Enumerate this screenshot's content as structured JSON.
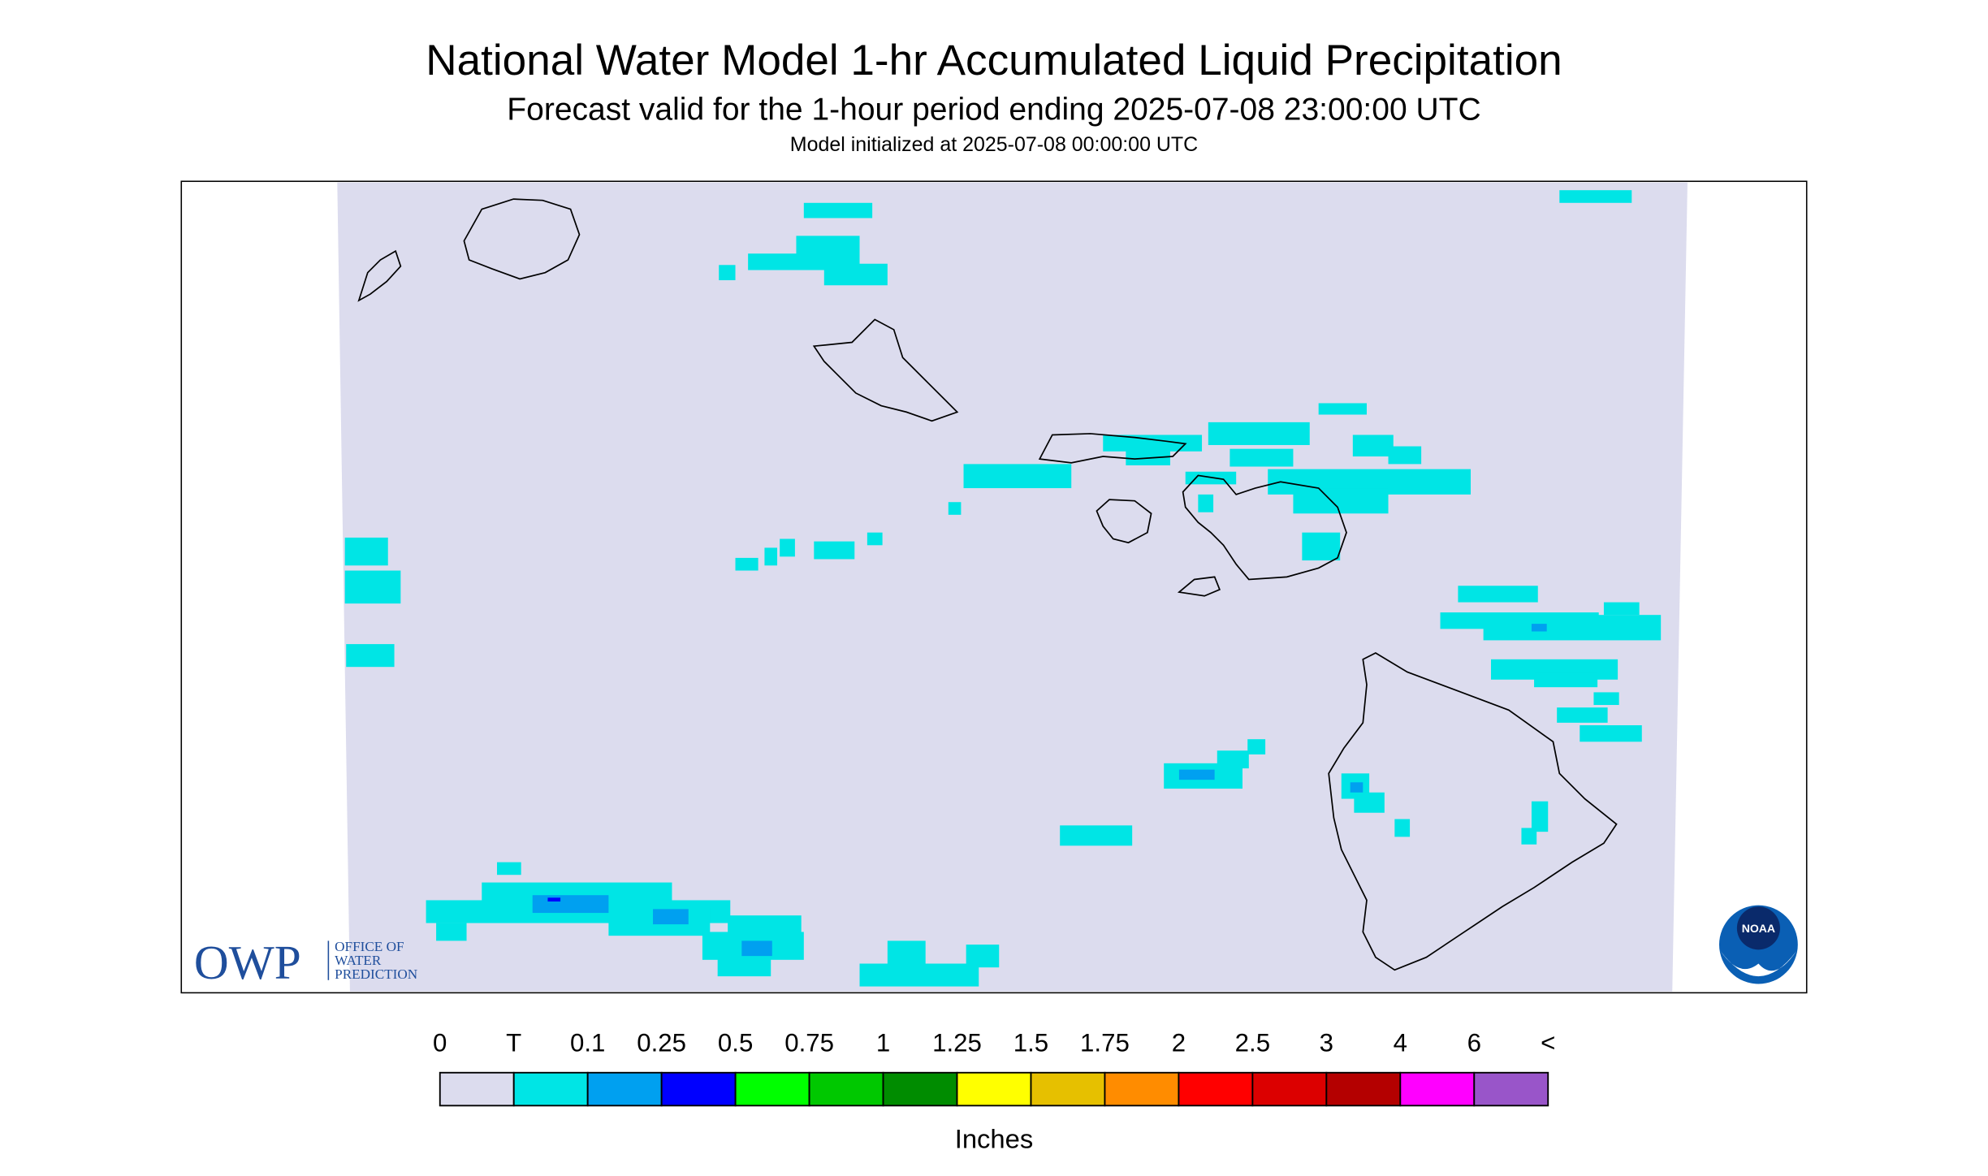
{
  "header": {
    "title": "National Water Model 1-hr Accumulated Liquid Precipitation",
    "subtitle": "Forecast valid for the 1-hour period ending 2025-07-08 23:00:00 UTC",
    "initialized": "Model initialized at 2025-07-08 00:00:00 UTC"
  },
  "legend": {
    "labels": [
      "0",
      "T",
      "0.1",
      "0.25",
      "0.5",
      "0.75",
      "1",
      "1.25",
      "1.5",
      "1.75",
      "2",
      "2.5",
      "3",
      "4",
      "6",
      "<"
    ],
    "colors": [
      "#dcdcee",
      "#00e5e5",
      "#00a0f0",
      "#0000ff",
      "#00ff00",
      "#00c800",
      "#008c00",
      "#ffff00",
      "#e6c000",
      "#ff8c00",
      "#ff0000",
      "#dc0000",
      "#b40000",
      "#ff00ff",
      "#9955c9"
    ],
    "unit": "Inches"
  },
  "logos": {
    "owp": "OWP",
    "owp_lines": [
      "OFFICE OF",
      "WATER",
      "PREDICTION"
    ],
    "noaa": "NOAA"
  }
}
